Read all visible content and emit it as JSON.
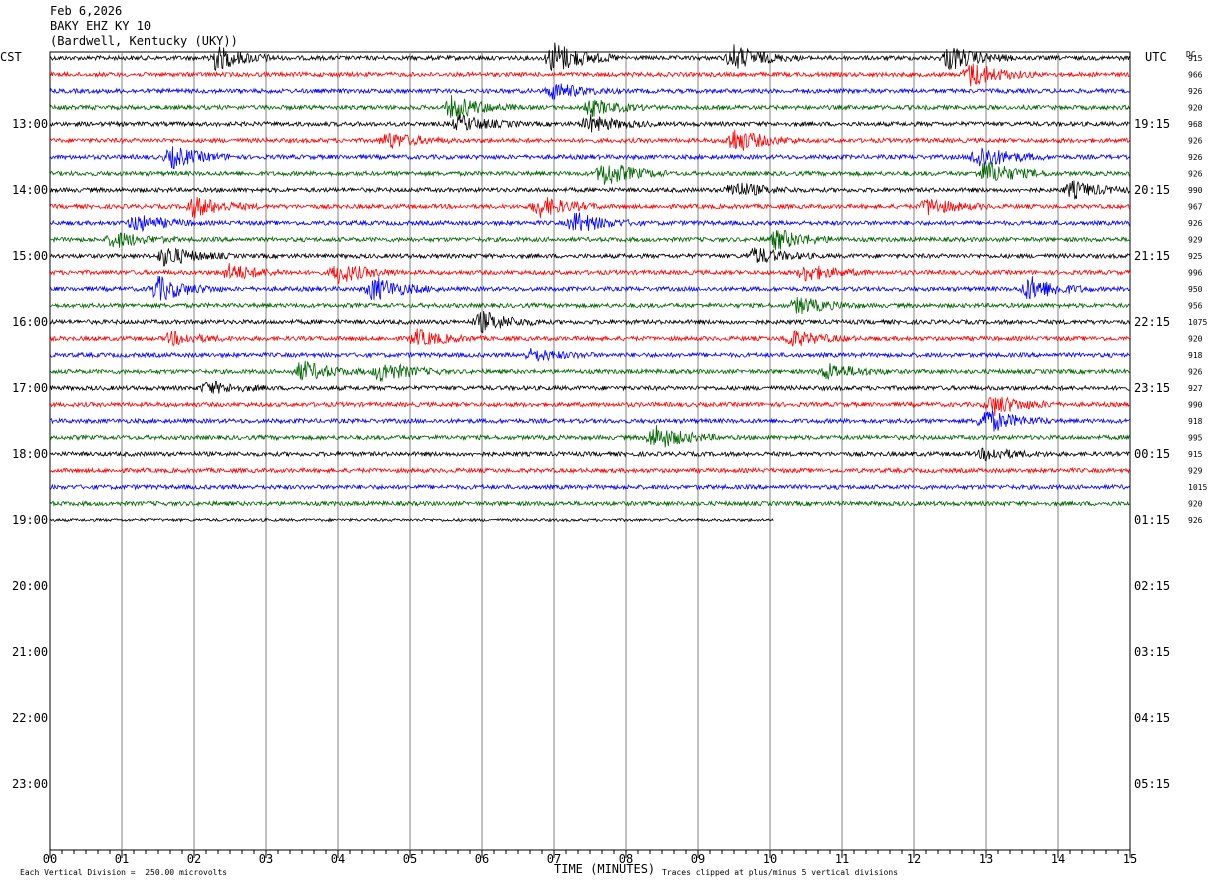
{
  "header": {
    "date": "Feb 6,2026",
    "station": "BAKY EHZ KY 10",
    "location": "(Bardwell, Kentucky (UKY))"
  },
  "left_timezone": "CST",
  "right_timezone": "UTC",
  "dc_label": "DC",
  "footer": {
    "scale_note": "Each Vertical Division =  250.00 microvolts",
    "clip_note": "Traces clipped at plus/minus 5 vertical divisions"
  },
  "colors": {
    "trace_cycle": [
      "#000000",
      "#ff0000",
      "#0000ff",
      "#006400"
    ],
    "grid": "#808080"
  },
  "chart_data": {
    "type": "line",
    "title": "",
    "xlabel": "TIME (MINUTES)",
    "xlim": [
      0,
      15
    ],
    "x_ticks": [
      "00",
      "01",
      "02",
      "03",
      "04",
      "05",
      "06",
      "07",
      "08",
      "09",
      "10",
      "11",
      "12",
      "13",
      "14",
      "15"
    ],
    "left_hour_labels": [
      "13:00",
      "14:00",
      "15:00",
      "16:00",
      "17:00",
      "18:00",
      "19:00",
      "20:00",
      "21:00",
      "22:00",
      "23:00"
    ],
    "right_hour_labels": [
      "19:15",
      "20:15",
      "21:15",
      "22:15",
      "23:15",
      "00:15",
      "01:15",
      "02:15",
      "03:15",
      "04:15",
      "05:15"
    ],
    "traces_per_hour": 4,
    "minutes_per_trace": 15,
    "dc_offsets": [
      "915",
      "966",
      "926",
      "920",
      "968",
      "926",
      "926",
      "926",
      "990",
      "967",
      "926",
      "929",
      "925",
      "996",
      "950",
      "956",
      "1075",
      "920",
      "918",
      "926",
      "927",
      "990",
      "918",
      "995",
      "915",
      "929",
      "1015",
      "920",
      "926"
    ],
    "last_trace_end_minute": 10.05,
    "events": [
      {
        "trace": 0,
        "minute": 2.3,
        "amp": 3
      },
      {
        "trace": 0,
        "minute": 7.0,
        "amp": 4
      },
      {
        "trace": 0,
        "minute": 9.5,
        "amp": 3
      },
      {
        "trace": 0,
        "minute": 12.5,
        "amp": 3
      },
      {
        "trace": 1,
        "minute": 12.8,
        "amp": 3
      },
      {
        "trace": 2,
        "minute": 7.0,
        "amp": 2
      },
      {
        "trace": 3,
        "minute": 5.6,
        "amp": 3
      },
      {
        "trace": 3,
        "minute": 7.5,
        "amp": 2
      },
      {
        "trace": 4,
        "minute": 5.7,
        "amp": 2
      },
      {
        "trace": 4,
        "minute": 7.5,
        "amp": 2
      },
      {
        "trace": 5,
        "minute": 9.5,
        "amp": 3
      },
      {
        "trace": 5,
        "minute": 4.7,
        "amp": 2
      },
      {
        "trace": 6,
        "minute": 1.7,
        "amp": 2.5
      },
      {
        "trace": 6,
        "minute": 12.9,
        "amp": 3
      },
      {
        "trace": 7,
        "minute": 7.7,
        "amp": 3
      },
      {
        "trace": 7,
        "minute": 13.0,
        "amp": 3
      },
      {
        "trace": 8,
        "minute": 14.2,
        "amp": 2
      },
      {
        "trace": 8,
        "minute": 9.5,
        "amp": 2
      },
      {
        "trace": 9,
        "minute": 2.0,
        "amp": 2.5
      },
      {
        "trace": 9,
        "minute": 6.8,
        "amp": 2.5
      },
      {
        "trace": 9,
        "minute": 12.2,
        "amp": 2
      },
      {
        "trace": 10,
        "minute": 7.3,
        "amp": 2.5
      },
      {
        "trace": 10,
        "minute": 1.2,
        "amp": 2
      },
      {
        "trace": 11,
        "minute": 0.9,
        "amp": 2
      },
      {
        "trace": 11,
        "minute": 10.1,
        "amp": 2.5
      },
      {
        "trace": 12,
        "minute": 1.6,
        "amp": 2.5
      },
      {
        "trace": 12,
        "minute": 9.8,
        "amp": 2
      },
      {
        "trace": 13,
        "minute": 4.0,
        "amp": 2.5
      },
      {
        "trace": 13,
        "minute": 2.5,
        "amp": 2
      },
      {
        "trace": 13,
        "minute": 10.5,
        "amp": 2
      },
      {
        "trace": 14,
        "minute": 1.5,
        "amp": 3
      },
      {
        "trace": 14,
        "minute": 4.5,
        "amp": 3
      },
      {
        "trace": 14,
        "minute": 13.6,
        "amp": 3
      },
      {
        "trace": 15,
        "minute": 10.4,
        "amp": 2
      },
      {
        "trace": 16,
        "minute": 6.0,
        "amp": 2.5
      },
      {
        "trace": 17,
        "minute": 5.1,
        "amp": 2
      },
      {
        "trace": 17,
        "minute": 10.3,
        "amp": 2
      },
      {
        "trace": 17,
        "minute": 1.7,
        "amp": 1.5
      },
      {
        "trace": 18,
        "minute": 6.7,
        "amp": 1.5
      },
      {
        "trace": 19,
        "minute": 3.5,
        "amp": 2.5
      },
      {
        "trace": 19,
        "minute": 4.6,
        "amp": 2.5
      },
      {
        "trace": 19,
        "minute": 10.8,
        "amp": 2
      },
      {
        "trace": 20,
        "minute": 2.2,
        "amp": 1.5
      },
      {
        "trace": 21,
        "minute": 13.1,
        "amp": 2.5
      },
      {
        "trace": 22,
        "minute": 13.0,
        "amp": 3
      },
      {
        "trace": 23,
        "minute": 8.4,
        "amp": 3
      },
      {
        "trace": 24,
        "minute": 13.0,
        "amp": 1.5
      }
    ]
  }
}
